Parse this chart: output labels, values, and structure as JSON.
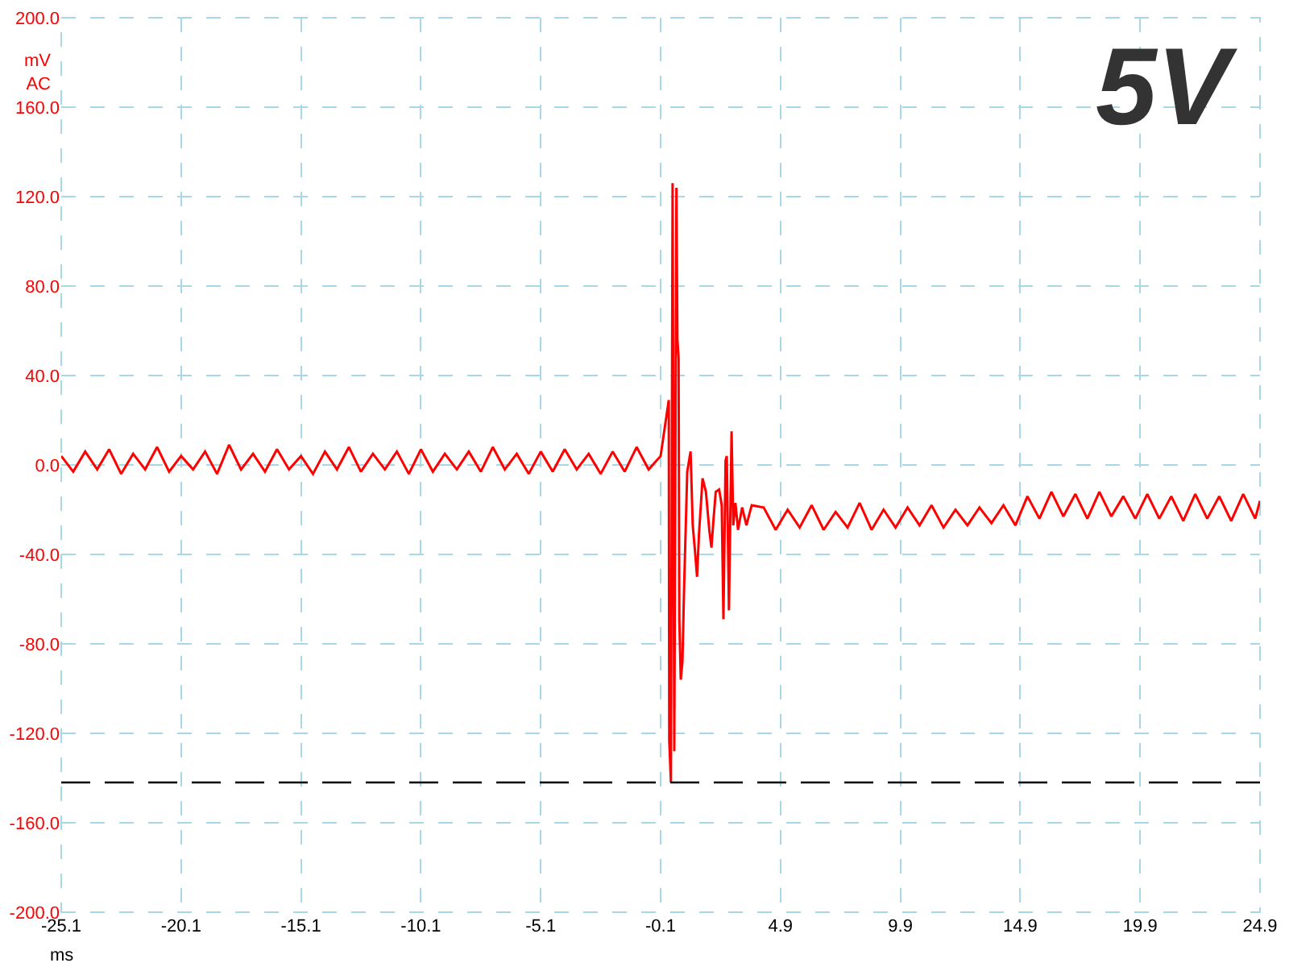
{
  "chart_data": {
    "type": "line",
    "ylabel": "mV\nAC",
    "xlabel": "ms",
    "annotations": [
      "5V"
    ],
    "xlim": [
      -25.1,
      24.9
    ],
    "xticks": [
      -25.1,
      -20.1,
      -15.1,
      -10.1,
      -5.1,
      -0.1,
      4.9,
      9.9,
      14.9,
      19.9,
      24.9
    ],
    "ylim": [
      -200,
      200
    ],
    "yticks": [
      {
        "value": -200,
        "label": "-200.0"
      },
      {
        "value": -160,
        "label": "-160.0"
      },
      {
        "value": -120,
        "label": "-120.0"
      },
      {
        "value": -80,
        "label": "-80.0"
      },
      {
        "value": -40,
        "label": "-40.0"
      },
      {
        "value": 0,
        "label": "0.0"
      },
      {
        "value": 40,
        "label": "40.0"
      },
      {
        "value": 80,
        "label": "80.0"
      },
      {
        "value": 120,
        "label": "120.0"
      },
      {
        "value": 160,
        "label": "160.0"
      },
      {
        "value": 200,
        "label": "200.0"
      }
    ],
    "grid": true,
    "marker": "none",
    "line_style": "solid",
    "ref_lines": [
      {
        "axis": "y",
        "value": -142,
        "color": "#000000",
        "line_style": "dashed"
      }
    ],
    "series": [
      {
        "color": "#ff0000",
        "x": [
          -25.1,
          -24.6,
          -24.1,
          -23.6,
          -23.1,
          -22.6,
          -22.1,
          -21.6,
          -21.1,
          -20.6,
          -20.1,
          -19.6,
          -19.1,
          -18.6,
          -18.1,
          -17.6,
          -17.1,
          -16.6,
          -16.1,
          -15.6,
          -15.1,
          -14.6,
          -14.1,
          -13.6,
          -13.1,
          -12.6,
          -12.1,
          -11.6,
          -11.1,
          -10.6,
          -10.1,
          -9.6,
          -9.1,
          -8.6,
          -8.1,
          -7.6,
          -7.1,
          -6.6,
          -6.1,
          -5.6,
          -5.1,
          -4.6,
          -4.1,
          -3.6,
          -3.1,
          -2.6,
          -2.1,
          -1.6,
          -1.1,
          -0.6,
          -0.1,
          0.24,
          0.26,
          0.33,
          0.4,
          0.47,
          0.56,
          0.6,
          0.65,
          0.68,
          0.74,
          0.81,
          0.88,
          1.01,
          1.15,
          1.24,
          1.33,
          1.42,
          1.5,
          1.65,
          1.79,
          1.93,
          2.02,
          2.11,
          2.2,
          2.34,
          2.45,
          2.52,
          2.61,
          2.66,
          2.75,
          2.86,
          2.93,
          3.02,
          3.13,
          3.3,
          3.48,
          3.7,
          4.2,
          4.7,
          5.2,
          5.7,
          6.2,
          6.7,
          7.2,
          7.7,
          8.2,
          8.7,
          9.2,
          9.7,
          10.2,
          10.7,
          11.2,
          11.7,
          12.2,
          12.7,
          13.2,
          13.7,
          14.2,
          14.7,
          15.2,
          15.7,
          16.2,
          16.7,
          17.2,
          17.7,
          18.2,
          18.7,
          19.2,
          19.7,
          20.2,
          20.7,
          21.2,
          21.7,
          22.2,
          22.7,
          23.2,
          23.7,
          24.2,
          24.7,
          24.9
        ],
        "values": [
          4,
          -3,
          6,
          -2,
          7,
          -4,
          5,
          -2,
          8,
          -3,
          4,
          -2,
          6,
          -4,
          9,
          -2,
          5,
          -3,
          7,
          -2,
          4,
          -4,
          6,
          -2,
          8,
          -3,
          5,
          -2,
          6,
          -4,
          7,
          -3,
          5,
          -2,
          6,
          -3,
          8,
          -2,
          5,
          -4,
          6,
          -3,
          7,
          -2,
          5,
          -4,
          6,
          -3,
          8,
          -2,
          4,
          29,
          -123,
          -142,
          126,
          -128,
          124,
          56,
          48,
          -69,
          -96,
          -88,
          -55,
          -3,
          6,
          -27,
          -38,
          -50,
          -31,
          -6,
          -12,
          -29,
          -37,
          -24,
          -12,
          -11,
          -18,
          -69,
          2,
          4,
          -65,
          15,
          -27,
          -17,
          -29,
          -19,
          -27,
          -18,
          -19,
          -29,
          -20,
          -28,
          -18,
          -29,
          -21,
          -28,
          -17,
          -29,
          -20,
          -28,
          -19,
          -27,
          -18,
          -28,
          -20,
          -27,
          -19,
          -26,
          -18,
          -27,
          -14,
          -24,
          -12,
          -23,
          -13,
          -24,
          -12,
          -23,
          -14,
          -24,
          -13,
          -24,
          -14,
          -25,
          -13,
          -24,
          -14,
          -25,
          -13,
          -24,
          -16
        ]
      }
    ]
  }
}
